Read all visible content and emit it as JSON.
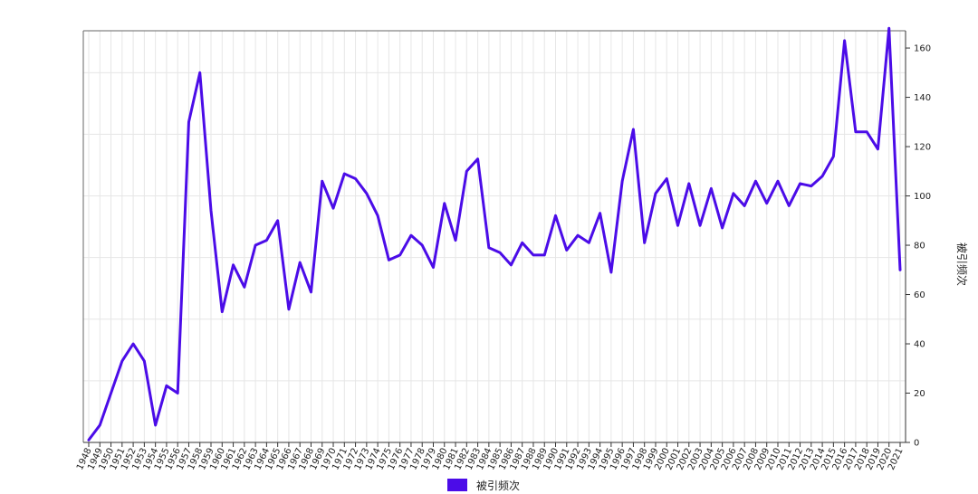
{
  "chart_data": {
    "type": "line",
    "title": "",
    "xlabel": "",
    "ylabel": "被引频次",
    "ylim": [
      0,
      167
    ],
    "yticks": [
      0,
      20,
      40,
      60,
      80,
      100,
      120,
      140,
      160
    ],
    "y_axis_side": "right",
    "grid": true,
    "legend_position": "bottom-center",
    "series_color": "#4b0ce8",
    "x": [
      "1948",
      "1949",
      "1950",
      "1951",
      "1952",
      "1953",
      "1954",
      "1955",
      "1956",
      "1957",
      "1958",
      "1959",
      "1960",
      "1961",
      "1962",
      "1963",
      "1964",
      "1965",
      "1966",
      "1967",
      "1968",
      "1969",
      "1970",
      "1971",
      "1972",
      "1973",
      "1974",
      "1975",
      "1976",
      "1977",
      "1978",
      "1979",
      "1980",
      "1981",
      "1982",
      "1983",
      "1984",
      "1985",
      "1986",
      "1987",
      "1988",
      "1989",
      "1990",
      "1991",
      "1992",
      "1993",
      "1994",
      "1995",
      "1996",
      "1997",
      "1998",
      "1999",
      "2000",
      "2001",
      "2002",
      "2003",
      "2004",
      "2005",
      "2006",
      "2007",
      "2008",
      "2009",
      "2010",
      "2011",
      "2012",
      "2013",
      "2014",
      "2015",
      "2016",
      "2017",
      "2018",
      "2019",
      "2020",
      "2021"
    ],
    "series": [
      {
        "name": "被引频次",
        "values": [
          1,
          7,
          20,
          33,
          40,
          33,
          7,
          23,
          20,
          130,
          150,
          94,
          53,
          72,
          63,
          80,
          82,
          90,
          54,
          73,
          61,
          106,
          95,
          109,
          107,
          101,
          92,
          74,
          76,
          84,
          80,
          71,
          97,
          82,
          110,
          115,
          79,
          77,
          72,
          81,
          76,
          76,
          92,
          78,
          84,
          81,
          93,
          69,
          106,
          127,
          81,
          101,
          107,
          88,
          105,
          88,
          103,
          87,
          101,
          96,
          106,
          97,
          106,
          96,
          105,
          104,
          108,
          116,
          163,
          126,
          126,
          119,
          168,
          70
        ]
      }
    ]
  }
}
